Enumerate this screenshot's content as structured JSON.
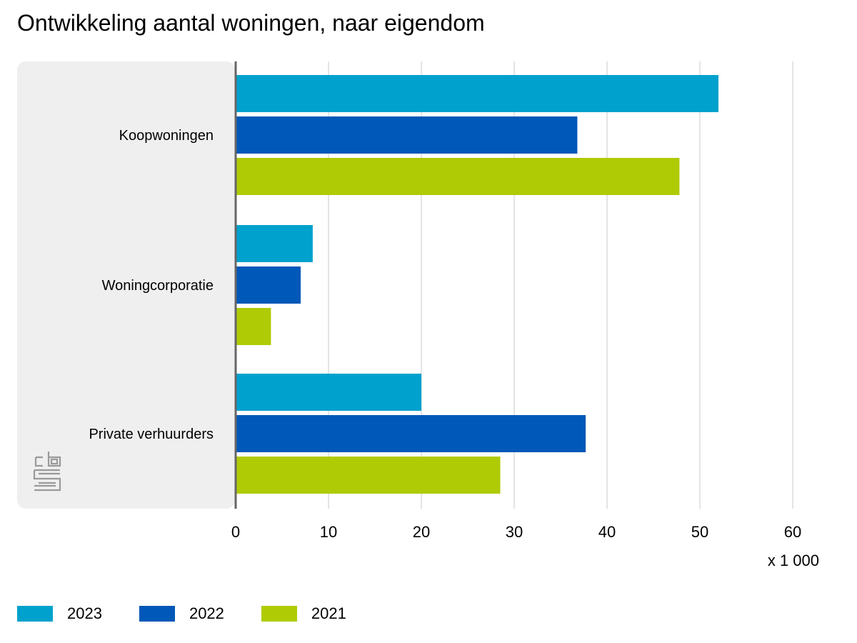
{
  "chart_data": {
    "type": "bar",
    "orientation": "horizontal",
    "title": "Ontwikkeling aantal woningen, naar eigendom",
    "categories": [
      "Koopwoningen",
      "Woningcorporatie",
      "Private verhuurders"
    ],
    "series": [
      {
        "name": "2023",
        "color": "#00a1cd",
        "values": [
          52.0,
          8.3,
          20.0
        ]
      },
      {
        "name": "2022",
        "color": "#0058b8",
        "values": [
          36.8,
          7.0,
          37.7
        ]
      },
      {
        "name": "2021",
        "color": "#afcb05",
        "values": [
          47.8,
          3.8,
          28.5
        ]
      }
    ],
    "xlim": [
      0,
      60
    ],
    "xticks": [
      0,
      10,
      20,
      30,
      40,
      50,
      60
    ],
    "unit_label": "x 1 000",
    "grid": true,
    "legend_position": "bottom"
  }
}
